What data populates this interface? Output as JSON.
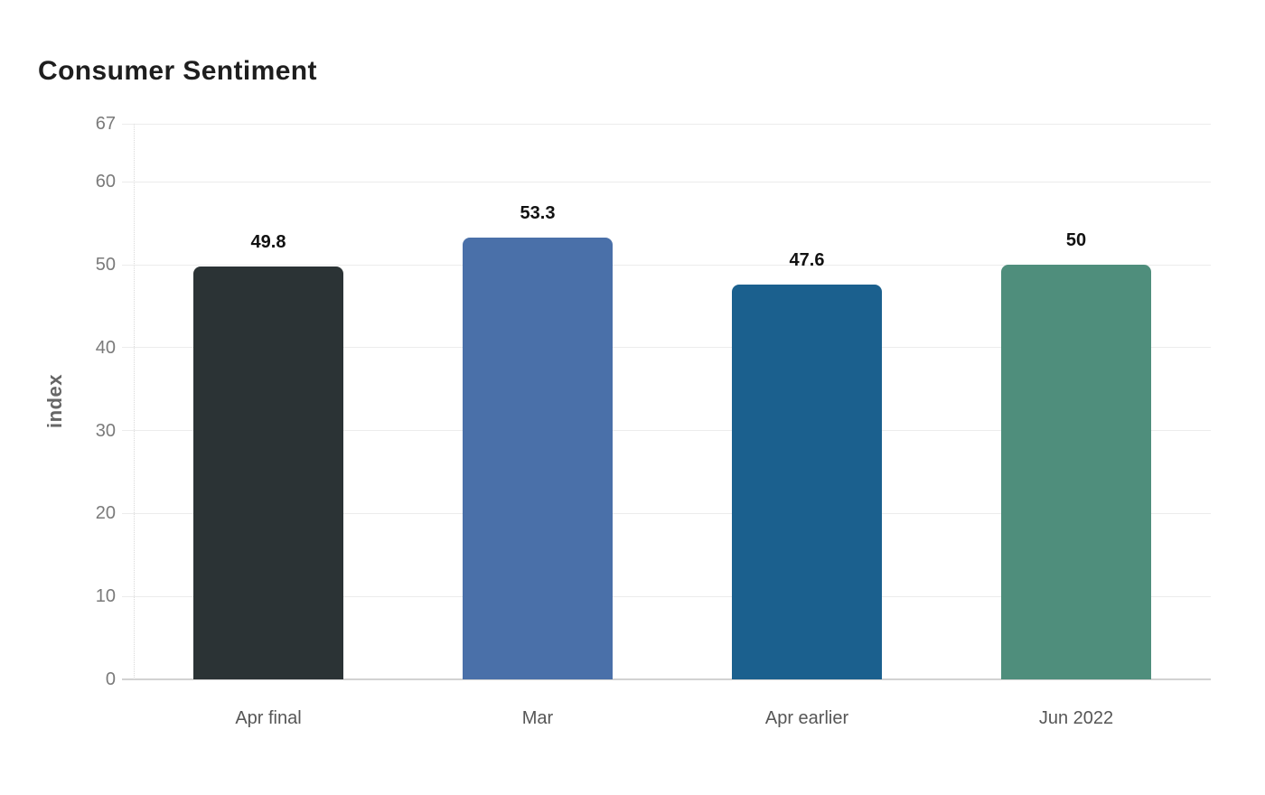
{
  "chart_data": {
    "type": "bar",
    "title": "Consumer Sentiment",
    "xlabel": "",
    "ylabel": "index",
    "categories": [
      "Apr final",
      "Mar",
      "Apr earlier",
      "Jun 2022"
    ],
    "values": [
      49.8,
      53.3,
      47.6,
      50
    ],
    "value_labels": [
      "49.8",
      "53.3",
      "47.6",
      "50"
    ],
    "bar_colors": [
      "#2b3335",
      "#4a70a9",
      "#1b608e",
      "#4f8e7c"
    ],
    "ylim": [
      0,
      67
    ],
    "yticks": [
      0,
      10,
      20,
      30,
      40,
      50,
      60,
      67
    ],
    "grid": "horizontal gridlines on",
    "legend_position": "none",
    "style_colors": {
      "title_text": "#1e1e1e",
      "y_axis_label_text": "#666666",
      "tick_text": "#7a7a7a",
      "x_tick_text": "#565656",
      "value_label_text": "#111111",
      "gridline": "#ececec",
      "baseline": "#d2d2d2",
      "spine": "#d9d9d9",
      "background": "#ffffff"
    }
  }
}
